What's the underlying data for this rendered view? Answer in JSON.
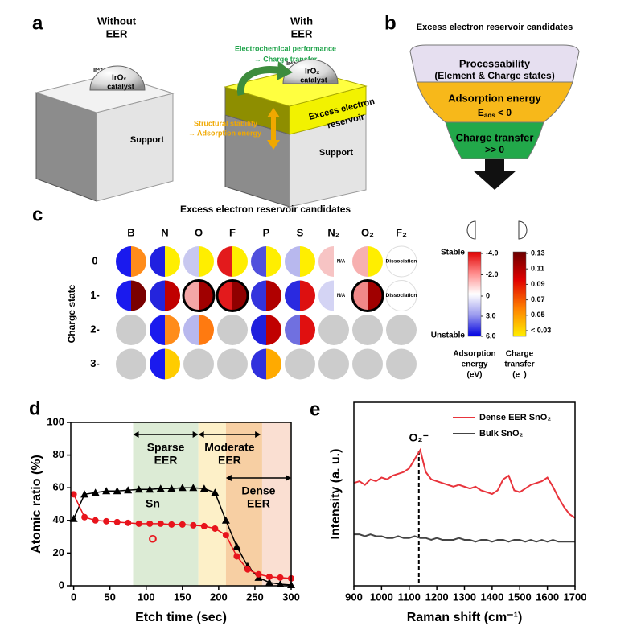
{
  "panel_a": {
    "label": "a",
    "without": [
      "Without",
      "EER"
    ],
    "with": [
      "With",
      "EER"
    ],
    "ion": "Ir⁴⁺",
    "catalyst": [
      "IrOₓ",
      "catalyst"
    ],
    "support": "Support",
    "reservoir": [
      "Excess electron",
      "reservoir"
    ],
    "green_note": [
      "Electrochemical performance",
      "→ Charge transfer"
    ],
    "orange_note": [
      "Structural stability",
      "→ Adsorption energy"
    ]
  },
  "panel_b": {
    "label": "b",
    "title": "Excess electron reservoir candidates",
    "stage1": [
      "Processability",
      "(Element & Charge states)"
    ],
    "stage2": {
      "line": "Adsorption energy",
      "base": "E",
      "sub": "ads",
      "rest": " < 0"
    },
    "stage3": [
      "Charge transfer",
      ">> 0"
    ]
  },
  "panel_c": {
    "label": "c",
    "title": "Excess electron reservoir candidates",
    "columns": [
      "B",
      "N",
      "O",
      "F",
      "P",
      "S",
      "N₂",
      "O₂",
      "F₂"
    ],
    "rows": [
      "0",
      "1-",
      "2-",
      "3-"
    ],
    "row_axis": "Charge state",
    "cells": [
      [
        {
          "left": "#1a1aee",
          "right": "#ff8c1a"
        },
        {
          "left": "#2020e0",
          "right": "#ffee00"
        },
        {
          "left": "#c8c8f0",
          "right": "#ffee00"
        },
        {
          "left": "#e31a1c",
          "right": "#ffee00"
        },
        {
          "left": "#5050dd",
          "right": "#ffee00"
        },
        {
          "left": "#b8b8ee",
          "right": "#ffee00"
        },
        {
          "left": "#f7c4c4",
          "label": "N/A"
        },
        {
          "left": "#f7b0b0",
          "right": "#ffee00"
        },
        {
          "label": "Dissociation"
        }
      ],
      [
        {
          "left": "#1a1aee",
          "right": "#7a0000"
        },
        {
          "left": "#2424dd",
          "right": "#c00000"
        },
        {
          "left": "#f4a6a6",
          "right": "#a00000",
          "outline": true
        },
        {
          "left": "#e31a1c",
          "right": "#900000",
          "outline": true
        },
        {
          "left": "#3333dd",
          "right": "#b00000"
        },
        {
          "left": "#2a2ae0",
          "right": "#dd1010"
        },
        {
          "left": "#d4d4f4",
          "label": "N/A"
        },
        {
          "left": "#f08888",
          "right": "#a00000",
          "outline": true
        },
        {
          "label": "Dissociation"
        }
      ],
      [
        {
          "fill": "#cccccc"
        },
        {
          "left": "#1a1aee",
          "right": "#ff8c1a"
        },
        {
          "left": "#b8b8ee",
          "right": "#ff7a10"
        },
        {
          "fill": "#cccccc"
        },
        {
          "left": "#2020dd",
          "right": "#c00000"
        },
        {
          "left": "#7070e0",
          "right": "#e01010"
        },
        {
          "fill": "#cccccc"
        },
        {
          "fill": "#cccccc"
        },
        {
          "fill": "#cccccc"
        }
      ],
      [
        {
          "fill": "#cccccc"
        },
        {
          "left": "#1a1aee",
          "right": "#ffcc00"
        },
        {
          "fill": "#cccccc"
        },
        {
          "fill": "#cccccc"
        },
        {
          "left": "#3030dd",
          "right": "#ffaa00"
        },
        {
          "fill": "#cccccc"
        },
        {
          "fill": "#cccccc"
        },
        {
          "fill": "#cccccc"
        },
        {
          "fill": "#cccccc"
        }
      ]
    ],
    "energy_bar": {
      "lim": [
        -4,
        6
      ],
      "ticks": [
        {
          "value": -4,
          "label": "-4.0"
        },
        {
          "value": -2,
          "label": "-2.0"
        },
        0,
        {
          "value": 3,
          "label": "3.0"
        },
        {
          "value": 6,
          "label": "6.0"
        }
      ],
      "colors": [
        "#e00000",
        "#ff8a8a",
        "#ffffff",
        "#9a9aee",
        "#0000e0"
      ],
      "top": "Stable",
      "bottom": "Unstable",
      "title": [
        "Adsorption",
        "energy",
        "(eV)"
      ]
    },
    "charge_bar": {
      "lim": [
        0.13,
        0.03
      ],
      "ticks": [
        0.13,
        0.11,
        0.09,
        0.07,
        0.05,
        {
          "value": 0.03,
          "label": "< 0.03"
        }
      ],
      "colors": [
        "#6b0000",
        "#e00000",
        "#ff8000",
        "#ffee00"
      ],
      "title": [
        "Charge",
        "transfer",
        "(e⁻)"
      ]
    }
  },
  "chart_data": [
    {
      "type": "line",
      "panel": "d",
      "xlabel": "Etch time (sec)",
      "ylabel": "Atomic ratio (%)",
      "x": [
        0,
        15,
        30,
        45,
        60,
        75,
        90,
        105,
        120,
        135,
        150,
        165,
        180,
        195,
        210,
        225,
        240,
        255,
        270,
        285,
        300
      ],
      "series": [
        {
          "name": "Sn",
          "color": "#000000",
          "marker": "triangle",
          "values": [
            41,
            56,
            57,
            58,
            58,
            58.5,
            59,
            59,
            59.5,
            59.5,
            60,
            60,
            59.5,
            57,
            40,
            24,
            12,
            5,
            2,
            1,
            0.5
          ]
        },
        {
          "name": "O",
          "color": "#e8141c",
          "marker": "circle",
          "values": [
            56,
            42,
            40,
            39.5,
            39,
            38.5,
            38,
            38,
            38,
            37.5,
            37.5,
            37,
            36.5,
            35,
            31,
            18,
            10,
            7,
            5.5,
            5,
            4.5
          ]
        }
      ],
      "regions": [
        {
          "from": 82,
          "to": 172,
          "color": "#dcebd5"
        },
        {
          "from": 172,
          "to": 210,
          "color": "#fdf0c8"
        },
        {
          "from": 210,
          "to": 260,
          "color": "#f7cfa3"
        },
        {
          "from": 260,
          "to": 300,
          "color": "#fadfd2"
        }
      ],
      "annotations": [
        {
          "lines": [
            "Sparse",
            "EER"
          ],
          "from": 82,
          "to": 172
        },
        {
          "lines": [
            "Moderate",
            "EER"
          ],
          "from": 172,
          "to": 258
        },
        {
          "lines": [
            "Dense",
            "EER"
          ],
          "from": 210,
          "to": 300
        }
      ],
      "xlim": [
        -4,
        300
      ],
      "xticks": [
        0,
        50,
        100,
        150,
        200,
        250,
        300
      ],
      "ylim": [
        0,
        100
      ],
      "yticks": [
        0,
        20,
        40,
        60,
        80,
        100
      ]
    },
    {
      "type": "line",
      "panel": "e",
      "xlabel": "Raman shift (cm⁻¹)",
      "ylabel": "Intensity (a. u.)",
      "x": [
        900,
        920,
        940,
        960,
        980,
        1000,
        1020,
        1040,
        1060,
        1080,
        1100,
        1120,
        1140,
        1160,
        1180,
        1200,
        1220,
        1240,
        1260,
        1280,
        1300,
        1320,
        1340,
        1360,
        1380,
        1400,
        1420,
        1440,
        1460,
        1480,
        1500,
        1520,
        1540,
        1560,
        1580,
        1600,
        1620,
        1640,
        1660,
        1680,
        1700
      ],
      "series": [
        {
          "name": "Dense EER SnO₂",
          "color": "#e8343c",
          "values": [
            56,
            57,
            55,
            58,
            57,
            59,
            58,
            60,
            61,
            62,
            64,
            69,
            74,
            62,
            58,
            57,
            56,
            55,
            54,
            55,
            54,
            53,
            54,
            52,
            51,
            50,
            52,
            58,
            60,
            52,
            51,
            53,
            55,
            56,
            57,
            59,
            54,
            48,
            43,
            39,
            37
          ]
        },
        {
          "name": "Bulk SnO₂",
          "color": "#444444",
          "values": [
            28,
            28,
            27,
            28,
            27,
            27,
            26,
            26,
            27,
            26,
            26,
            27,
            26,
            26,
            25,
            26,
            25,
            25,
            25,
            26,
            25,
            25,
            24,
            25,
            25,
            24,
            25,
            25,
            24,
            25,
            25,
            24,
            25,
            24,
            25,
            24,
            25,
            24,
            24,
            24,
            24
          ]
        }
      ],
      "marker_line": {
        "value": 1135,
        "label": "O₂⁻"
      },
      "xlim": [
        900,
        1700
      ],
      "xticks": [
        900,
        1000,
        1100,
        1200,
        1300,
        1400,
        1500,
        1600,
        1700
      ],
      "ylim": [
        0,
        100
      ]
    }
  ]
}
